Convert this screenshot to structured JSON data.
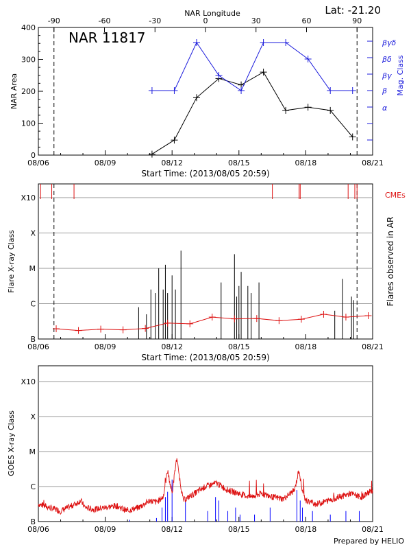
{
  "colors": {
    "black": "#000000",
    "blue": "#1a1adc",
    "red": "#dd1111",
    "grid": "#9a9a9a",
    "goes_blue": "#0000ff"
  },
  "chart_data": [
    {
      "type": "line",
      "title": "NAR 11817",
      "corner_label": "Lat: -21.20",
      "top_axis_label": "NAR Longitude",
      "top_ticks": [
        "-90",
        "-60",
        "-30",
        "0",
        "30",
        "60",
        "90"
      ],
      "top_tick_values": [
        -90,
        -60,
        -30,
        0,
        30,
        60,
        90
      ],
      "ylabel": "NAR Area",
      "y2label": "Mag. Class",
      "ylim": [
        0,
        400
      ],
      "yticks": [
        "0",
        "100",
        "200",
        "300",
        "400"
      ],
      "y2_ticks": [
        "α",
        "β",
        "βγ",
        "βδ",
        "βγδ"
      ],
      "xlim_days": [
        0,
        15
      ],
      "xticks": [
        "08/06",
        "08/09",
        "08/12",
        "08/15",
        "08/18",
        "08/21"
      ],
      "xlabel": "Start Time: (2013/08/05 20:59)",
      "limb_days": [
        0.7,
        14.3
      ],
      "area_series": {
        "name": "NAR Area",
        "x_days": [
          5.1,
          6.1,
          7.1,
          8.1,
          9.1,
          10.1,
          11.1,
          12.1,
          13.1,
          14.1
        ],
        "values": [
          3,
          47,
          180,
          240,
          220,
          260,
          140,
          150,
          140,
          57
        ]
      },
      "mag_series": {
        "name": "Mag. Class",
        "x_days": [
          5.1,
          6.1,
          7.1,
          8.1,
          9.1,
          10.1,
          11.1,
          12.1,
          13.1,
          14.1
        ],
        "values": [
          "β",
          "β",
          "βγδ",
          "βγ",
          "β",
          "βγδ",
          "βγδ",
          "βδ",
          "β",
          "β"
        ]
      }
    },
    {
      "type": "bar",
      "ylabel": "Flare X-ray Class",
      "y2label": "Flares observed in AR",
      "cme_label": "CMEs",
      "yticks": [
        "B",
        "C",
        "M",
        "X",
        "X10"
      ],
      "xticks": [
        "08/06",
        "08/09",
        "08/12",
        "08/15",
        "08/18",
        "08/21"
      ],
      "xlabel": "Start Time: (2013/08/05 20:59)",
      "cme_days": [
        0.1,
        0.6,
        1.6,
        10.5,
        11.7,
        11.75,
        13.9,
        14.2,
        14.3
      ],
      "flare_days": [
        4.5,
        4.85,
        5.05,
        5.25,
        5.4,
        5.6,
        5.7,
        5.8,
        6.0,
        6.15,
        6.4,
        8.2,
        8.8,
        8.9,
        9.0,
        9.1,
        9.4,
        9.55,
        9.9,
        13.3,
        13.65,
        14.05,
        14.15
      ],
      "flare_levels": [
        1.9,
        1.7,
        2.4,
        2.3,
        3.0,
        2.4,
        3.1,
        2.3,
        2.8,
        2.4,
        3.5,
        2.6,
        3.4,
        2.2,
        2.5,
        2.9,
        2.5,
        2.3,
        2.6,
        1.8,
        2.7,
        2.2,
        2.1
      ],
      "bkg_series": {
        "name": "Background flux",
        "x_days": [
          0.8,
          1.8,
          2.8,
          3.8,
          4.8,
          5.8,
          6.8,
          7.8,
          8.8,
          9.8,
          10.8,
          11.8,
          12.8,
          13.8,
          14.8
        ],
        "levels": [
          1.29,
          1.24,
          1.28,
          1.26,
          1.3,
          1.45,
          1.43,
          1.62,
          1.57,
          1.58,
          1.52,
          1.56,
          1.7,
          1.62,
          1.66
        ]
      }
    },
    {
      "type": "line",
      "ylabel": "GOES X-ray Class",
      "yticks": [
        "B",
        "C",
        "M",
        "X",
        "X10"
      ],
      "xticks": [
        "08/06",
        "08/09",
        "08/12",
        "08/15",
        "08/18",
        "08/21"
      ],
      "goes_red": {
        "name": "GOES long channel",
        "x_days": [
          0,
          0.5,
          1.0,
          1.5,
          1.9,
          2.1,
          2.5,
          3.0,
          3.5,
          4.0,
          4.2,
          4.5,
          5.0,
          5.3,
          5.6,
          5.8,
          6.0,
          6.2,
          6.5,
          7.0,
          7.5,
          8.0,
          8.5,
          9.0,
          9.5,
          10.0,
          10.5,
          11.0,
          11.5,
          11.7,
          11.8,
          12.0,
          12.5,
          13.0,
          13.5,
          14.0,
          14.5,
          15.0
        ],
        "levels": [
          1.5,
          1.4,
          1.3,
          1.45,
          1.6,
          1.4,
          1.35,
          1.4,
          1.45,
          1.3,
          1.35,
          1.4,
          1.6,
          1.55,
          1.7,
          2.45,
          1.8,
          2.8,
          1.6,
          1.8,
          2.0,
          2.1,
          1.9,
          1.8,
          1.7,
          1.8,
          1.7,
          1.65,
          1.9,
          2.5,
          2.0,
          1.6,
          1.5,
          1.6,
          1.7,
          1.8,
          1.7,
          1.9
        ]
      },
      "goes_blue_spikes": {
        "name": "GOES short channel",
        "x_days": [
          4.1,
          5.3,
          5.55,
          5.7,
          5.8,
          6.0,
          6.6,
          7.6,
          7.95,
          8.1,
          8.5,
          8.85,
          9.05,
          9.7,
          10.4,
          11.6,
          11.75,
          11.85,
          12.3,
          13.1,
          13.8,
          14.4
        ],
        "levels": [
          1.05,
          1.1,
          1.4,
          1.7,
          1.85,
          2.2,
          1.6,
          1.3,
          1.7,
          1.6,
          1.3,
          1.4,
          1.2,
          1.2,
          1.4,
          1.9,
          1.6,
          1.4,
          1.3,
          1.2,
          1.3,
          1.3
        ]
      }
    }
  ],
  "footer": {
    "prepared_by": "Prepared by HELIO"
  }
}
